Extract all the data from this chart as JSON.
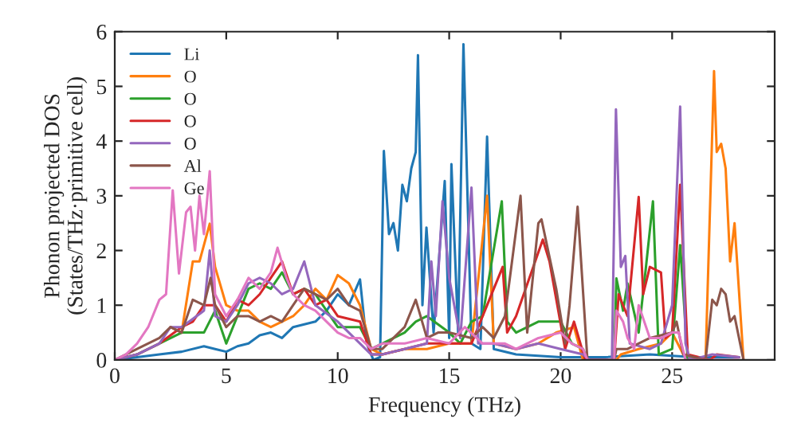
{
  "chart_data": {
    "type": "line",
    "xlabel": "Frequency (THz)",
    "ylabel": "Phonon projected DOS\n(States/THz·primitive cell)",
    "xlim": [
      0,
      29.6
    ],
    "ylim": [
      0,
      6
    ],
    "xticks": [
      0,
      5,
      10,
      15,
      20,
      25
    ],
    "yticks": [
      0,
      1,
      2,
      3,
      4,
      5,
      6
    ],
    "legend": "top left",
    "series": [
      {
        "name": "Li",
        "color": "#1f77b4",
        "x": [
          0,
          1,
          2,
          3,
          4,
          4.5,
          5,
          5.5,
          6,
          6.5,
          7,
          7.5,
          8,
          8.5,
          9,
          9.5,
          10,
          10.5,
          11,
          11.3,
          11.6,
          11.9,
          12.07,
          12.3,
          12.5,
          12.7,
          12.9,
          13.1,
          13.3,
          13.5,
          13.6,
          13.8,
          13.98,
          14.3,
          14.8,
          15.0,
          15.1,
          15.4,
          15.64,
          16.0,
          16.4,
          16.7,
          17.0,
          18,
          20,
          22,
          24,
          26,
          28
        ],
        "values": [
          0,
          0.05,
          0.1,
          0.15,
          0.25,
          0.2,
          0.15,
          0.25,
          0.3,
          0.45,
          0.5,
          0.4,
          0.6,
          0.65,
          0.7,
          0.9,
          1.2,
          1.0,
          1.47,
          0.3,
          0.0,
          0.05,
          3.82,
          2.3,
          2.5,
          2.0,
          3.2,
          2.9,
          3.5,
          3.8,
          5.57,
          1.0,
          2.42,
          0.5,
          3.27,
          0.4,
          3.58,
          0.5,
          5.77,
          0.3,
          0.2,
          4.08,
          0.2,
          0.1,
          0.05,
          0.05,
          0.1,
          0.05,
          0.05
        ]
      },
      {
        "name": "O",
        "color": "#ff7f0e",
        "x": [
          2.5,
          3,
          3.5,
          3.8,
          4.26,
          4.5,
          5,
          5.5,
          6,
          6.5,
          7,
          7.5,
          8,
          8.5,
          9,
          9.5,
          10,
          10.5,
          11,
          11.5,
          12,
          13,
          14,
          15,
          16,
          16.7,
          17,
          18,
          19,
          19.8,
          20.6,
          21,
          22.5,
          22.7,
          23.5,
          24.5,
          25,
          25.5,
          26.5,
          26.88,
          27.0,
          27.2,
          27.4,
          27.6,
          27.8,
          28.2
        ],
        "values": [
          0.6,
          0.5,
          1.8,
          1.8,
          2.49,
          1.7,
          1.0,
          0.9,
          0.9,
          0.7,
          0.6,
          0.7,
          0.8,
          1.0,
          1.3,
          1.1,
          1.55,
          1.4,
          1.0,
          0.2,
          0.1,
          0.2,
          0.2,
          0.3,
          0.3,
          3.0,
          0.3,
          0.2,
          0.3,
          0.5,
          0.6,
          0.0,
          0.0,
          0.1,
          0.2,
          0.3,
          0.5,
          0.1,
          0.0,
          5.28,
          3.8,
          3.95,
          3.5,
          1.8,
          2.5,
          0.0
        ]
      },
      {
        "name": "O",
        "color": "#2ca02c",
        "x": [
          0,
          1,
          2,
          3,
          4,
          4.5,
          5,
          5.5,
          6,
          6.5,
          7,
          7.5,
          8,
          8.5,
          9,
          10,
          11,
          11.5,
          12,
          13,
          13.5,
          14,
          15,
          15.5,
          16,
          16.5,
          17.36,
          17.6,
          18,
          19,
          20,
          20.5,
          21,
          21.2,
          22.4,
          22.5,
          22.8,
          23,
          23.5,
          23.8,
          24.14,
          24.4,
          25.0,
          25.36,
          25.7,
          26.7
        ],
        "values": [
          0,
          0.1,
          0.3,
          0.5,
          0.5,
          0.9,
          0.3,
          0.8,
          1.3,
          1.4,
          1.3,
          1.6,
          1.2,
          1.3,
          1.2,
          0.6,
          0.6,
          0.2,
          0.3,
          0.5,
          0.7,
          0.8,
          0.5,
          0.3,
          0.7,
          0.8,
          2.9,
          0.7,
          0.5,
          0.7,
          0.7,
          0.3,
          0.2,
          0.0,
          0.0,
          1.49,
          0.9,
          1.4,
          0.5,
          1.6,
          2.9,
          0.1,
          0.2,
          2.1,
          0.0,
          0.0
        ]
      },
      {
        "name": "O",
        "color": "#d62728",
        "x": [
          0,
          1,
          2,
          3,
          3.5,
          4,
          4.5,
          5,
          5.5,
          6,
          6.5,
          7,
          7.5,
          8,
          8.5,
          9,
          9.5,
          10,
          11,
          11.5,
          12,
          13,
          14,
          15,
          16,
          17.4,
          17.6,
          18.0,
          19.2,
          19.5,
          20.2,
          20.6,
          21.1,
          22.4,
          22.6,
          23,
          23.5,
          23.7,
          24.0,
          24.5,
          24.7,
          25.0,
          25.36,
          25.7,
          26.7,
          27,
          28
        ],
        "values": [
          0,
          0.1,
          0.3,
          0.6,
          0.7,
          1.0,
          1.0,
          0.7,
          1.1,
          1.0,
          1.2,
          1.5,
          1.8,
          1.2,
          1.3,
          1.0,
          1.1,
          0.8,
          0.7,
          0.1,
          0.1,
          0.2,
          0.3,
          0.3,
          0.3,
          1.7,
          0.5,
          0.8,
          2.2,
          1.8,
          0.2,
          0.7,
          0.0,
          0.0,
          1.2,
          0.8,
          2.98,
          1.2,
          1.7,
          1.6,
          0.4,
          0.5,
          3.2,
          0.1,
          0.0,
          0.1,
          0.05
        ]
      },
      {
        "name": "O",
        "color": "#9467bd",
        "x": [
          0,
          1,
          2,
          2.5,
          3,
          4,
          4.26,
          4.5,
          5,
          5.5,
          6,
          6.5,
          7,
          7.5,
          8,
          8.5,
          9,
          10,
          10.5,
          11,
          11.5,
          12,
          13,
          14,
          14.2,
          14.4,
          14.7,
          15.0,
          15.5,
          16.0,
          16.3,
          17,
          18,
          19,
          20,
          21,
          21.3,
          22.3,
          22.48,
          22.7,
          22.9,
          23.1,
          24,
          24.5,
          25,
          25.36,
          25.6,
          25.8,
          26.8,
          28
        ],
        "values": [
          0,
          0.1,
          0.3,
          0.6,
          0.6,
          0.9,
          2.0,
          0.8,
          0.7,
          1.0,
          1.4,
          1.5,
          1.4,
          1.2,
          1.3,
          1.8,
          1.0,
          0.7,
          0.5,
          0.3,
          0.1,
          0.1,
          0.2,
          0.3,
          1.8,
          0.8,
          2.9,
          1.5,
          0.4,
          3.15,
          0.3,
          0.3,
          0.2,
          0.3,
          0.2,
          0.1,
          0.0,
          0.0,
          4.58,
          1.7,
          1.9,
          0.3,
          0.2,
          0.3,
          1.0,
          4.63,
          0.3,
          0.0,
          0.1,
          0.05
        ]
      },
      {
        "name": "Al",
        "color": "#8c564b",
        "x": [
          0,
          1,
          2,
          2.5,
          3,
          3.5,
          4,
          4.3,
          4.5,
          5,
          5.5,
          6,
          6.5,
          7,
          7.5,
          8,
          8.5,
          9,
          9.5,
          10,
          10.5,
          11,
          11.5,
          12,
          12.5,
          13,
          13.5,
          14,
          14.5,
          15,
          16,
          16.5,
          17,
          17.5,
          18.2,
          18.5,
          19.0,
          19.14,
          19.8,
          20.2,
          20.4,
          20.76,
          21.2,
          22.4,
          22.5,
          23,
          24,
          25,
          25.2,
          25.5,
          26.5,
          26.8,
          27.0,
          27.2,
          27.4,
          27.6,
          27.8,
          28.2
        ],
        "values": [
          0,
          0.2,
          0.4,
          0.6,
          0.5,
          1.1,
          1.0,
          1.5,
          1.0,
          0.6,
          0.8,
          0.8,
          0.7,
          0.8,
          0.7,
          1.0,
          1.3,
          1.2,
          1.1,
          1.3,
          1.0,
          0.9,
          0.2,
          0.2,
          0.4,
          0.6,
          1.1,
          0.4,
          0.5,
          0.5,
          0.4,
          0.6,
          0.4,
          0.8,
          3.0,
          0.5,
          2.5,
          2.57,
          1.3,
          0.3,
          1.0,
          2.8,
          0.0,
          0.0,
          0.2,
          0.2,
          0.4,
          0.5,
          0.7,
          0.1,
          0.0,
          1.1,
          1.0,
          1.3,
          1.2,
          0.7,
          0.8,
          0.0
        ]
      },
      {
        "name": "Ge",
        "color": "#e377c2",
        "x": [
          0,
          0.5,
          1,
          1.5,
          2,
          2.3,
          2.6,
          2.88,
          3.2,
          3.4,
          3.6,
          3.8,
          4.0,
          4.26,
          4.5,
          5,
          5.5,
          6,
          6.5,
          7,
          7.3,
          7.7,
          8,
          8.5,
          9,
          10,
          10.5,
          11,
          11.5,
          12,
          13,
          14,
          15,
          15.7,
          16.5,
          17.5,
          18,
          19,
          20,
          20.5,
          21,
          21.2,
          22.4,
          22.5,
          22.8,
          23.0,
          23.3,
          23.5,
          24,
          24.5,
          25,
          25.3,
          25.6,
          28
        ],
        "values": [
          0,
          0.1,
          0.3,
          0.6,
          1.1,
          1.2,
          3.1,
          1.58,
          2.7,
          2.8,
          2.0,
          3.0,
          2.3,
          3.45,
          1.2,
          0.8,
          1.1,
          1.5,
          1.3,
          1.6,
          2.05,
          1.5,
          1.2,
          1.0,
          0.9,
          0.5,
          0.4,
          0.4,
          0.2,
          0.3,
          0.3,
          0.4,
          0.3,
          0.6,
          0.3,
          0.3,
          0.2,
          0.4,
          0.5,
          0.3,
          0.2,
          0.0,
          0.0,
          0.9,
          0.7,
          0.4,
          0.2,
          1.0,
          0.4,
          0.4,
          0.5,
          0.5,
          0.0,
          0.0
        ]
      }
    ]
  }
}
